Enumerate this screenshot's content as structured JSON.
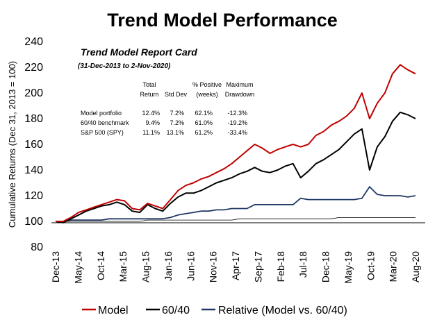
{
  "chart_data": {
    "type": "line",
    "title": "Trend Model Performance",
    "ylabel": "Cumulative Returns (Dec 31, 2013 = 100)",
    "xlabel": "",
    "ylim": [
      80,
      240
    ],
    "yticks": [
      80,
      100,
      120,
      140,
      160,
      180,
      200,
      220,
      240
    ],
    "x_tick_labels": [
      "Dec-13",
      "May-14",
      "Oct-14",
      "Mar-15",
      "Aug-15",
      "Jan-16",
      "Jun-16",
      "Nov-16",
      "Apr-17",
      "Sep-17",
      "Feb-18",
      "Jul-18",
      "Dec-18",
      "May-19",
      "Oct-19",
      "Mar-20",
      "Aug-20"
    ],
    "x": [
      "Dec-13",
      "Feb-14",
      "Apr-14",
      "Jun-14",
      "Aug-14",
      "Oct-14",
      "Dec-14",
      "Feb-15",
      "Apr-15",
      "Jun-15",
      "Aug-15",
      "Sep-15",
      "Nov-15",
      "Jan-16",
      "Feb-16",
      "Apr-16",
      "Jun-16",
      "Aug-16",
      "Oct-16",
      "Nov-16",
      "Jan-17",
      "Mar-17",
      "May-17",
      "Jul-17",
      "Sep-17",
      "Nov-17",
      "Jan-18",
      "Feb-18",
      "Apr-18",
      "Jun-18",
      "Aug-18",
      "Oct-18",
      "Dec-18",
      "Jan-19",
      "Mar-19",
      "May-19",
      "Jul-19",
      "Sep-19",
      "Nov-19",
      "Jan-20",
      "Feb-20",
      "Mar-20",
      "Apr-20",
      "Jun-20",
      "Aug-20",
      "Sep-20",
      "Oct-20",
      "Nov-20"
    ],
    "series": [
      {
        "name": "Model",
        "color": "#c00000",
        "values": [
          100,
          100,
          103,
          107,
          109,
          111,
          113,
          115,
          117,
          116,
          110,
          109,
          114,
          112,
          110,
          117,
          124,
          128,
          130,
          133,
          135,
          138,
          141,
          145,
          150,
          155,
          160,
          157,
          153,
          156,
          158,
          160,
          158,
          160,
          167,
          170,
          175,
          178,
          182,
          188,
          200,
          180,
          192,
          200,
          215,
          222,
          218,
          215
        ]
      },
      {
        "name": "60/40",
        "color": "#000000",
        "values": [
          100,
          99,
          102,
          105,
          108,
          110,
          112,
          113,
          115,
          113,
          108,
          107,
          113,
          110,
          108,
          114,
          119,
          122,
          122,
          124,
          127,
          130,
          132,
          134,
          137,
          139,
          142,
          139,
          138,
          140,
          143,
          145,
          134,
          139,
          145,
          148,
          152,
          156,
          162,
          168,
          172,
          140,
          158,
          166,
          178,
          185,
          183,
          180
        ]
      },
      {
        "name": "Relative (Model vs. 60/40)",
        "color": "#1f3864",
        "values": [
          100,
          100,
          101,
          101,
          101,
          101,
          101,
          102,
          102,
          102,
          102,
          102,
          102,
          102,
          102,
          103,
          105,
          106,
          107,
          108,
          108,
          109,
          109,
          110,
          110,
          110,
          113,
          113,
          113,
          113,
          113,
          113,
          118,
          117,
          117,
          117,
          117,
          117,
          117,
          117,
          118,
          127,
          121,
          120,
          120,
          120,
          119,
          120
        ]
      },
      {
        "name": "",
        "color": "#000000",
        "values": [
          100,
          100,
          100,
          100,
          100,
          100,
          100,
          100,
          100,
          100,
          100,
          100,
          101,
          101,
          101,
          101,
          101,
          101,
          101,
          101,
          101,
          101,
          101,
          101,
          102,
          102,
          102,
          102,
          102,
          102,
          102,
          102,
          102,
          102,
          102,
          102,
          102,
          103,
          103,
          103,
          103,
          103,
          103,
          103,
          103,
          103,
          103,
          103
        ]
      }
    ],
    "legend": {
      "position": "bottom",
      "entries": [
        {
          "label": "Model",
          "color": "#c00000"
        },
        {
          "label": "60/40",
          "color": "#000000"
        },
        {
          "label": "Relative (Model vs. 60/40)",
          "color": "#1f3864"
        }
      ]
    },
    "grid": false,
    "report_card": {
      "title": "Trend Model Report Card",
      "subtitle": "(31-Dec-2013 to 2-Nov-2020)",
      "headers": {
        "total_return": [
          "Total",
          "Return"
        ],
        "std_dev": [
          "",
          "Std Dev"
        ],
        "pct_positive": [
          "% Positive",
          "(weeks)"
        ],
        "max_drawdown": [
          "Maximum",
          "Drawdown"
        ]
      },
      "rows": [
        {
          "name": "Model portfolio",
          "total_return": "12.4%",
          "std_dev": "7.2%",
          "pct_positive": "62.1%",
          "max_drawdown": "-12.3%"
        },
        {
          "name": "60/40 benchmark",
          "total_return": "9.4%",
          "std_dev": "7.2%",
          "pct_positive": "61.0%",
          "max_drawdown": "-19.2%"
        },
        {
          "name": "S&P 500 (SPY)",
          "total_return": "11.1%",
          "std_dev": "13.1%",
          "pct_positive": "61.2%",
          "max_drawdown": "-33.4%"
        }
      ]
    }
  }
}
